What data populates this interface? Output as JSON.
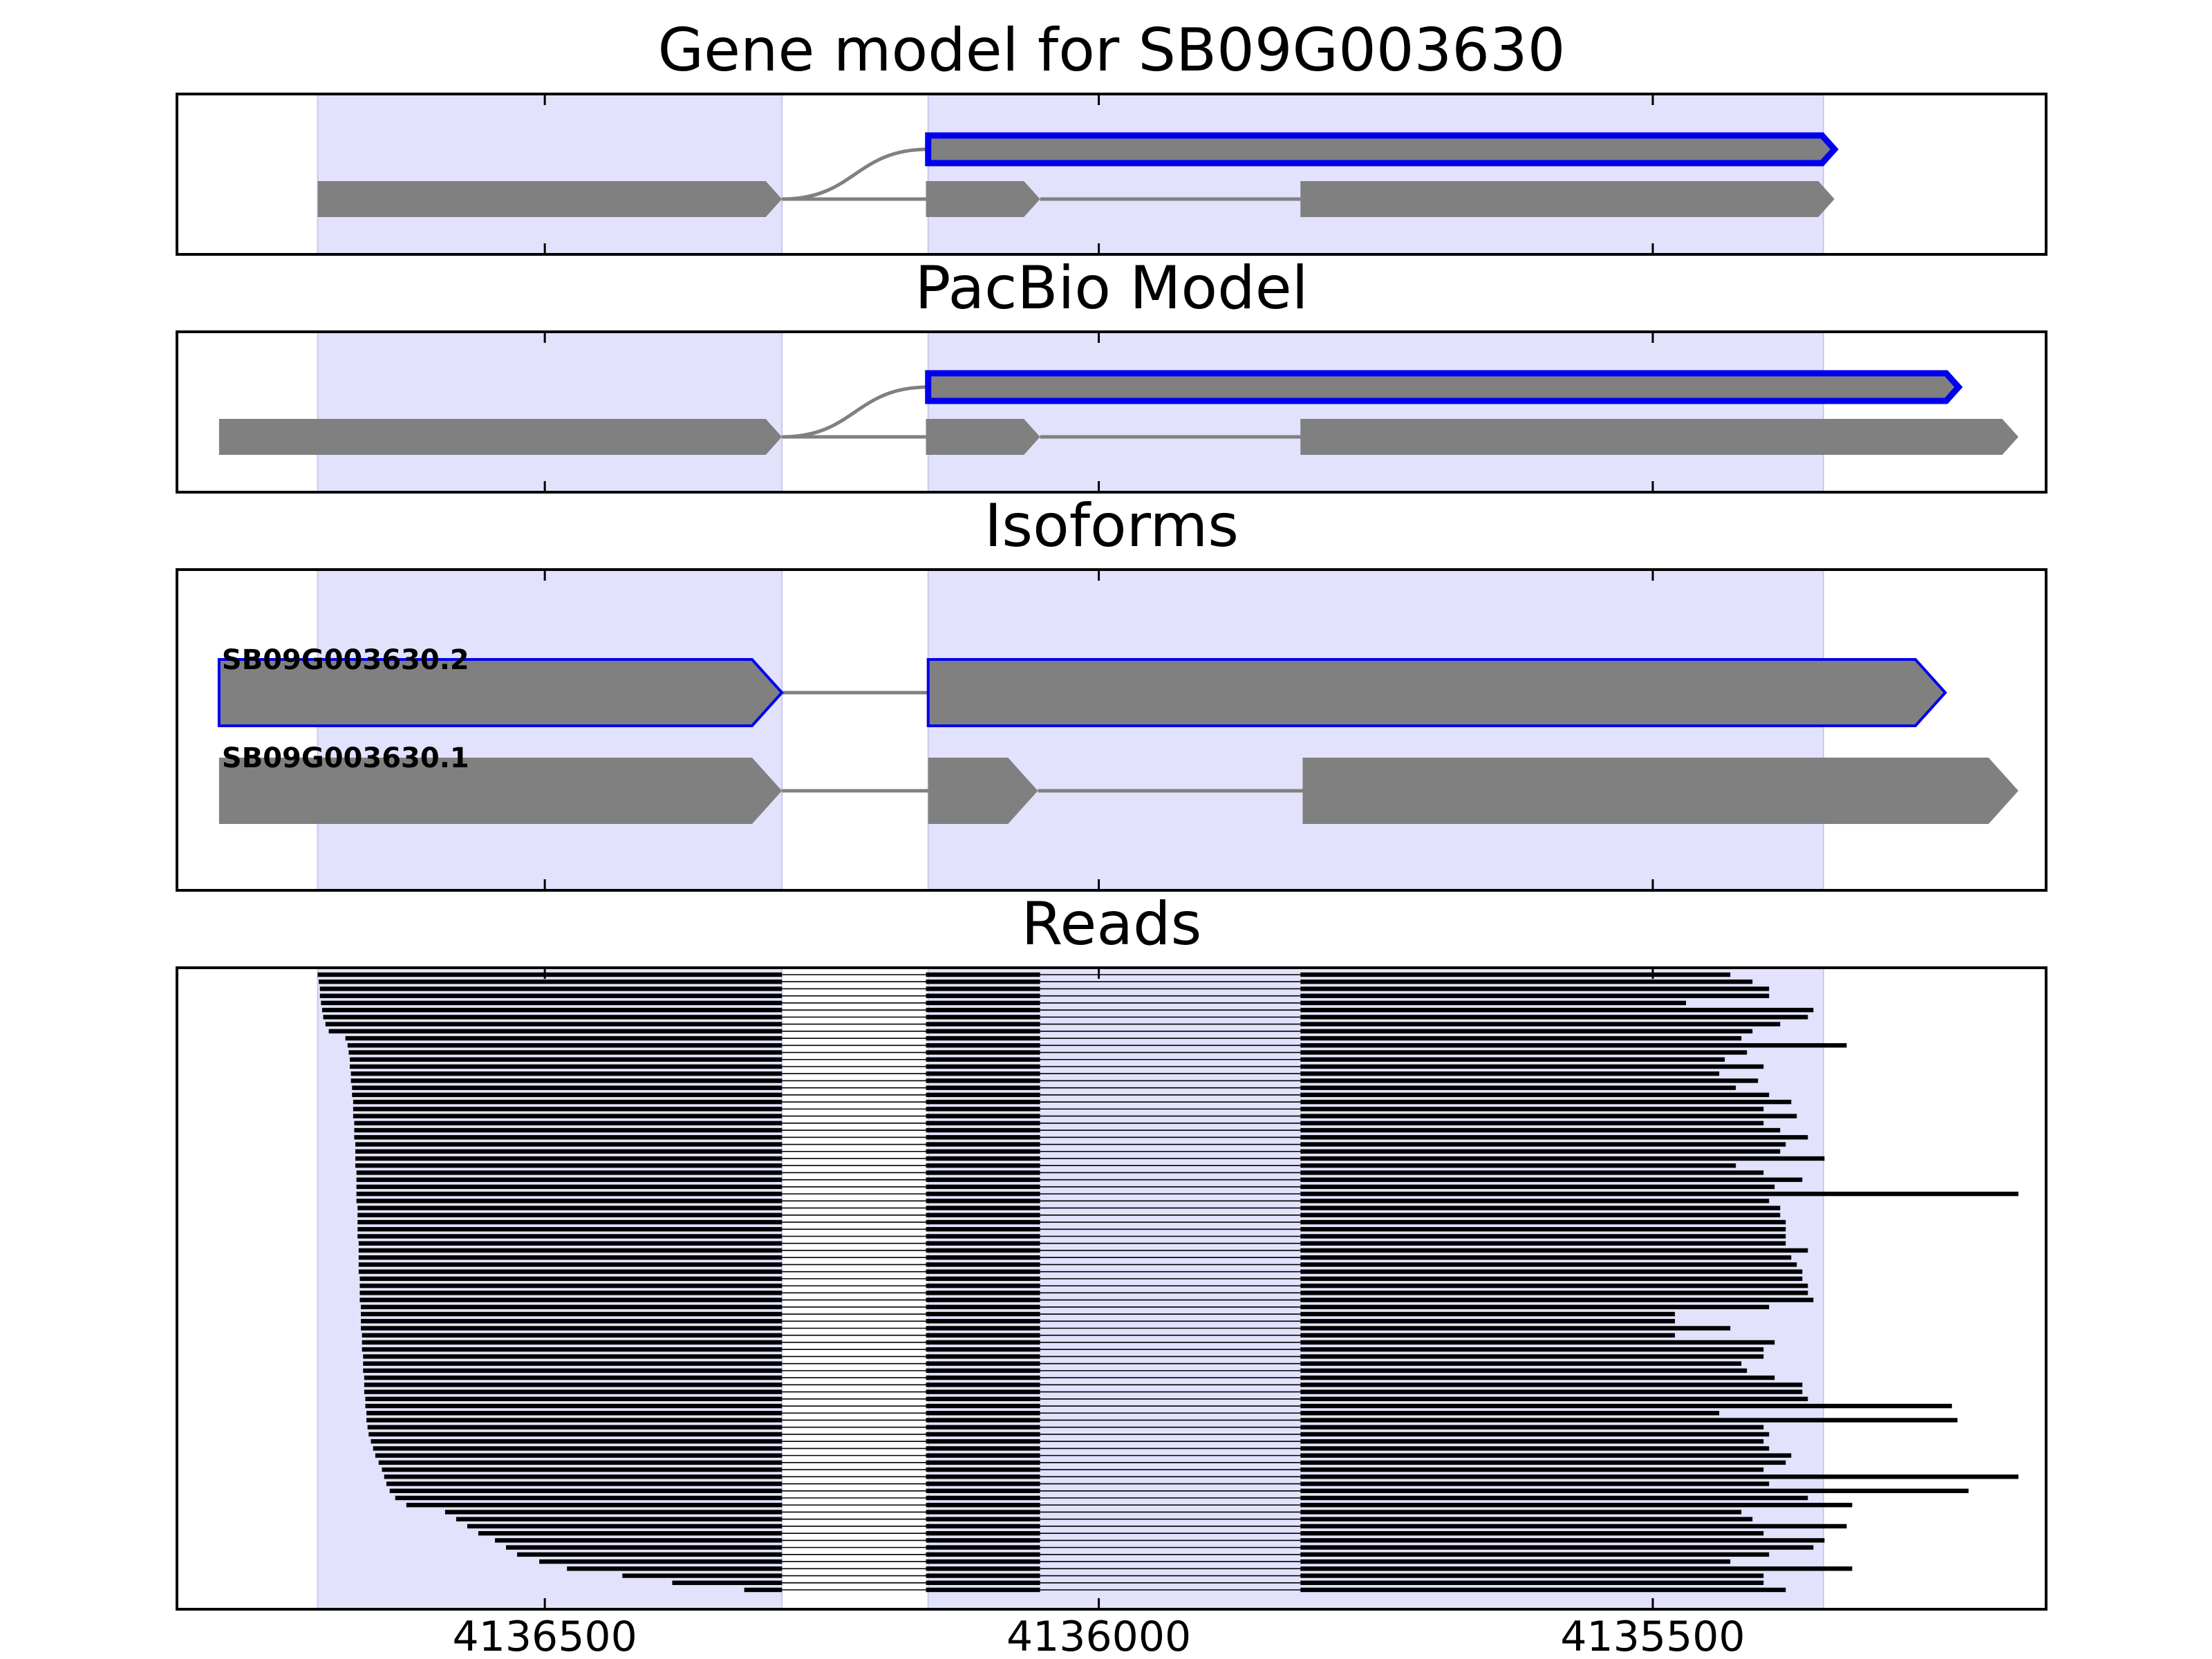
{
  "chart_data": {
    "type": "gene-track",
    "x_axis": {
      "reversed": true,
      "xlim": [
        4136832,
        4135145
      ],
      "ticks": [
        4136500,
        4136000,
        4135500
      ],
      "tick_labels": [
        "4136500",
        "4136000",
        "4135500"
      ]
    },
    "shaded_regions": [
      [
        4136705,
        4136286
      ],
      [
        4136154,
        4135346
      ]
    ],
    "colors": {
      "shade": "#e2e2fc",
      "exon_fill": "#808080",
      "highlight_edge": "#0000ee",
      "intron_line": "#808080",
      "read": "#000000",
      "frame": "#000000"
    },
    "panels": [
      {
        "title": "Gene model for SB09G003630",
        "models": [
          {
            "strand": "-",
            "highlight": true,
            "exons": [
              [
                4136154,
                4135336
              ]
            ]
          },
          {
            "strand": "-",
            "highlight": false,
            "exons": [
              [
                4136705,
                4136286
              ],
              [
                4136156,
                4136053
              ],
              [
                4135818,
                4135336
              ]
            ]
          }
        ]
      },
      {
        "title": "PacBio Model",
        "models": [
          {
            "strand": "-",
            "highlight": true,
            "exons": [
              [
                4136154,
                4135224
              ]
            ]
          },
          {
            "strand": "-",
            "highlight": false,
            "exons": [
              [
                4136794,
                4136286
              ],
              [
                4136156,
                4136053
              ],
              [
                4135818,
                4135170
              ]
            ]
          }
        ]
      },
      {
        "title": "Isoforms",
        "isoforms": [
          {
            "name": "SB09G003630.2",
            "strand": "-",
            "highlight": true,
            "exons": [
              [
                4136794,
                4136286
              ],
              [
                4136154,
                4135236
              ]
            ]
          },
          {
            "name": "SB09G003630.1",
            "strand": "-",
            "highlight": false,
            "exons": [
              [
                4136794,
                4136286
              ],
              [
                4136154,
                4136055
              ],
              [
                4135816,
                4135170
              ]
            ]
          }
        ]
      },
      {
        "title": "Reads",
        "exon_block_1_end": 4136286,
        "exon_block_2": [
          4136156,
          4136053
        ],
        "exon_block_3_start": 4135818,
        "read_starts": [
          4136705,
          4136704,
          4136703,
          4136703,
          4136702,
          4136701,
          4136700,
          4136698,
          4136695,
          4136680,
          4136678,
          4136677,
          4136676,
          4136676,
          4136675,
          4136675,
          4136674,
          4136674,
          4136673,
          4136673,
          4136673,
          4136672,
          4136672,
          4136672,
          4136671,
          4136671,
          4136671,
          4136671,
          4136670,
          4136670,
          4136670,
          4136670,
          4136670,
          4136669,
          4136669,
          4136669,
          4136669,
          4136669,
          4136668,
          4136668,
          4136668,
          4136668,
          4136668,
          4136667,
          4136667,
          4136667,
          4136667,
          4136666,
          4136666,
          4136666,
          4136666,
          4136665,
          4136665,
          4136665,
          4136664,
          4136664,
          4136664,
          4136663,
          4136663,
          4136663,
          4136662,
          4136662,
          4136661,
          4136661,
          4136660,
          4136659,
          4136657,
          4136655,
          4136653,
          4136650,
          4136647,
          4136645,
          4136643,
          4136640,
          4136635,
          4136625,
          4136590,
          4136580,
          4136570,
          4136560,
          4136545,
          4136535,
          4136525,
          4136505,
          4136480,
          4136430,
          4136385,
          4136320
        ],
        "read_ends": [
          4135430,
          4135410,
          4135395,
          4135395,
          4135470,
          4135355,
          4135360,
          4135385,
          4135410,
          4135420,
          4135325,
          4135415,
          4135435,
          4135400,
          4135440,
          4135405,
          4135425,
          4135395,
          4135375,
          4135400,
          4135370,
          4135400,
          4135385,
          4135360,
          4135380,
          4135385,
          4135345,
          4135425,
          4135400,
          4135365,
          4135390,
          4135170,
          4135395,
          4135385,
          4135385,
          4135380,
          4135380,
          4135380,
          4135380,
          4135360,
          4135375,
          4135370,
          4135365,
          4135365,
          4135360,
          4135360,
          4135355,
          4135395,
          4135480,
          4135480,
          4135430,
          4135480,
          4135390,
          4135400,
          4135400,
          4135420,
          4135415,
          4135390,
          4135365,
          4135365,
          4135360,
          4135230,
          4135440,
          4135225,
          4135400,
          4135395,
          4135400,
          4135395,
          4135375,
          4135380,
          4135400,
          4135170,
          4135395,
          4135215,
          4135360,
          4135320,
          4135420,
          4135410,
          4135325,
          4135400,
          4135345,
          4135355,
          4135395,
          4135430,
          4135320,
          4135400,
          4135400,
          4135380
        ]
      }
    ]
  }
}
